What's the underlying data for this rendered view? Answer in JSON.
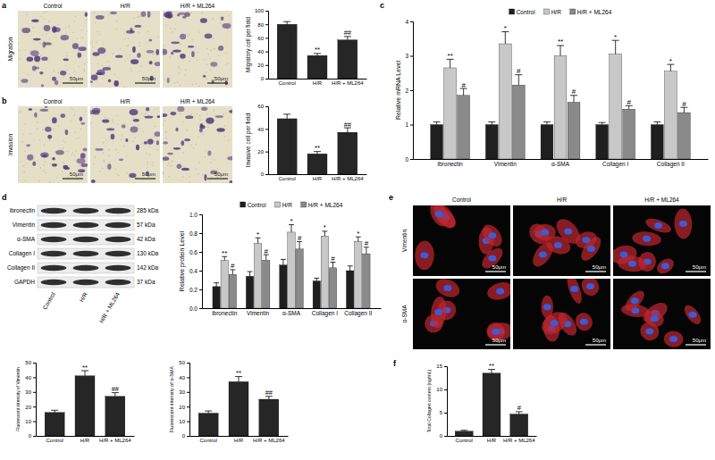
{
  "chart_data": [
    {
      "type": "bar",
      "y_label": "Migratory cell per field",
      "categories": [
        "Control",
        "H/R",
        "H/R + ML264"
      ],
      "values": [
        80,
        34,
        57
      ],
      "errors": [
        4,
        3,
        5
      ],
      "annotations": [
        null,
        "**",
        "##"
      ],
      "color": "#262626",
      "ylim": [
        0,
        100
      ],
      "yticks": [
        0,
        20,
        40,
        60,
        80,
        100
      ]
    },
    {
      "type": "bar",
      "y_label": "Invasive cell per field",
      "categories": [
        "Control",
        "H/R",
        "H/R + ML264"
      ],
      "values": [
        49,
        18,
        37
      ],
      "errors": [
        4,
        2,
        4
      ],
      "annotations": [
        null,
        "**",
        "##"
      ],
      "color": "#262626",
      "ylim": [
        0,
        60
      ],
      "yticks": [
        0,
        20,
        40,
        60
      ]
    },
    {
      "type": "bar",
      "y_label": "Relative mRNA Level",
      "categories": [
        "ibronectin",
        "Vimentin",
        "α-SMA",
        "Collagen I",
        "Collagen II"
      ],
      "series": [
        {
          "name": "Control",
          "color": "#1f1f1f",
          "values": [
            1.0,
            1.0,
            1.0,
            1.0,
            1.0
          ],
          "errors": [
            0.08,
            0.08,
            0.08,
            0.06,
            0.08
          ]
        },
        {
          "name": "H/R",
          "color": "#c8c8c8",
          "values": [
            2.65,
            3.35,
            3.0,
            3.05,
            2.55
          ],
          "errors": [
            0.25,
            0.35,
            0.3,
            0.4,
            0.2
          ],
          "annotations": [
            "**",
            "*",
            "**",
            "*",
            "*"
          ]
        },
        {
          "name": "H/R + ML264",
          "color": "#8a8a8a",
          "values": [
            1.85,
            2.15,
            1.65,
            1.45,
            1.35
          ],
          "errors": [
            0.2,
            0.3,
            0.2,
            0.1,
            0.15
          ],
          "annotations": [
            "#",
            "#",
            "#",
            "#",
            "#"
          ]
        }
      ],
      "legend": "top",
      "ylim": [
        0,
        4
      ],
      "yticks": [
        0,
        1,
        2,
        3,
        4
      ]
    },
    {
      "type": "bar",
      "y_label": "Relative protein Level",
      "categories": [
        "ibronectin",
        "Vimentin",
        "α-SMA",
        "Collagen I",
        "Collagen II"
      ],
      "series": [
        {
          "name": "Control",
          "color": "#1f1f1f",
          "values": [
            0.23,
            0.34,
            0.46,
            0.29,
            0.4
          ],
          "errors": [
            0.04,
            0.05,
            0.06,
            0.03,
            0.05
          ]
        },
        {
          "name": "H/R",
          "color": "#c8c8c8",
          "values": [
            0.51,
            0.69,
            0.81,
            0.77,
            0.71
          ],
          "errors": [
            0.04,
            0.06,
            0.08,
            0.05,
            0.05
          ],
          "annotations": [
            "**",
            "*",
            "*",
            "*",
            "*"
          ]
        },
        {
          "name": "H/R + ML264",
          "color": "#8a8a8a",
          "values": [
            0.36,
            0.51,
            0.63,
            0.43,
            0.58
          ],
          "errors": [
            0.05,
            0.06,
            0.08,
            0.06,
            0.07
          ],
          "annotations": [
            "#",
            "#",
            "#",
            "#",
            "#"
          ]
        }
      ],
      "legend": "top",
      "ylim": [
        0,
        1
      ],
      "yticks": [
        {
          "value": 0,
          "label": "0.0"
        },
        0.2,
        0.4,
        0.6,
        0.8,
        {
          "value": 1,
          "label": "1.0"
        }
      ]
    },
    {
      "type": "bar",
      "y_label": "Fluorescent intensity of Vimentin",
      "categories": [
        "Control",
        "H/R",
        "H/R + ML264"
      ],
      "values": [
        16,
        41,
        27
      ],
      "errors": [
        1.5,
        3.5,
        2.5
      ],
      "annotations": [
        null,
        "**",
        "##"
      ],
      "color": "#262626",
      "ylim": [
        0,
        50
      ],
      "yticks": [
        0,
        10,
        20,
        30,
        40,
        50
      ]
    },
    {
      "type": "bar",
      "y_label": "Fluorescent intensity of α-SMA",
      "categories": [
        "Control",
        "H/R",
        "H/R + ML264"
      ],
      "values": [
        15.5,
        37,
        25
      ],
      "errors": [
        1.5,
        3.5,
        2
      ],
      "annotations": [
        null,
        "**",
        "##"
      ],
      "color": "#262626",
      "ylim": [
        0,
        50
      ],
      "yticks": [
        0,
        10,
        20,
        30,
        40,
        50
      ]
    },
    {
      "type": "bar",
      "y_label": "Total Collagen content (ng/mL)",
      "categories": [
        "Control",
        "H/R",
        "H/R + ML264"
      ],
      "values": [
        1.0,
        13.5,
        4.7
      ],
      "errors": [
        0.2,
        0.8,
        0.5
      ],
      "annotations": [
        null,
        "**",
        "#"
      ],
      "color": "#262626",
      "ylim": [
        0,
        15
      ],
      "yticks": [
        0,
        5,
        10,
        15
      ]
    }
  ],
  "figure": {
    "panel_labels": [
      "a",
      "b",
      "c",
      "d",
      "e",
      "f"
    ],
    "a": {
      "row_label": "Migration",
      "image_labels": [
        "Control",
        "H/R",
        "H/R + ML264"
      ],
      "scale_bars": [
        "50μm",
        "50μm",
        "50μm"
      ]
    },
    "b": {
      "row_label": "Invasion",
      "image_labels": [
        "Control",
        "H/R",
        "H/R + ML264"
      ],
      "scale_bars": [
        "50μm",
        "50μm",
        "50μm"
      ]
    },
    "blot": {
      "proteins": [
        {
          "name": "ibronectin",
          "size": "285 kDa"
        },
        {
          "name": "Vimentin",
          "size": "57 kDa"
        },
        {
          "name": "α-SMA",
          "size": "42 kDa"
        },
        {
          "name": "Collagen I",
          "size": "130 kDa"
        },
        {
          "name": "Collagen II",
          "size": "142 kDa"
        },
        {
          "name": "GAPDH",
          "size": "37 kDa"
        }
      ],
      "lanes": [
        "Control",
        "H/R",
        "H/R + ML264"
      ]
    },
    "e": {
      "column_labels": [
        "Control",
        "H/R",
        "H/R + ML264"
      ],
      "row_labels": [
        "Vimentin",
        "α-SMA"
      ],
      "scale_bars": [
        "50μm",
        "50μm",
        "50μm",
        "50μm",
        "50μm",
        "50μm"
      ]
    }
  }
}
